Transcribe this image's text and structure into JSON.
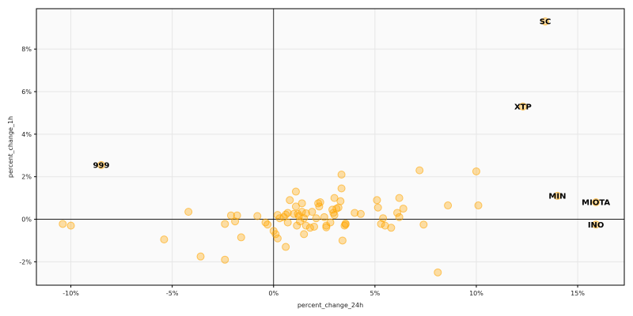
{
  "chart_data": {
    "type": "scatter",
    "xlabel": "percent_change_24h",
    "ylabel": "percent_change_1h",
    "xlim": [
      -11.7,
      17.3
    ],
    "ylim": [
      -3.1,
      9.9
    ],
    "grid": true,
    "colors": {
      "point": "#ffa500",
      "axis": "#000000",
      "grid": "#e6e6e6",
      "plot_bg": "#fafafa"
    },
    "x_ticks": [
      {
        "value": -10,
        "label": "-10%"
      },
      {
        "value": -5,
        "label": "-5%"
      },
      {
        "value": 0,
        "label": "0%"
      },
      {
        "value": 5,
        "label": "5%"
      },
      {
        "value": 10,
        "label": "10%"
      },
      {
        "value": 15,
        "label": "15%"
      }
    ],
    "y_ticks": [
      {
        "value": -2,
        "label": "-2%"
      },
      {
        "value": 0,
        "label": "0%"
      },
      {
        "value": 2,
        "label": "2%"
      },
      {
        "value": 4,
        "label": "4%"
      },
      {
        "value": 6,
        "label": "6%"
      },
      {
        "value": 8,
        "label": "8%"
      }
    ],
    "labeled_points": [
      {
        "label": "SC",
        "x": 13.4,
        "y": 9.3
      },
      {
        "label": "XTP",
        "x": 12.3,
        "y": 5.3
      },
      {
        "label": "999",
        "x": -8.5,
        "y": 2.55
      },
      {
        "label": "MIN",
        "x": 14.0,
        "y": 1.1
      },
      {
        "label": "MIOTA",
        "x": 15.9,
        "y": 0.8
      },
      {
        "label": "INO",
        "x": 15.9,
        "y": -0.25
      }
    ],
    "points": [
      [
        -10.4,
        -0.22
      ],
      [
        -10.0,
        -0.3
      ],
      [
        -5.4,
        -0.95
      ],
      [
        -4.2,
        0.35
      ],
      [
        -3.6,
        -1.75
      ],
      [
        -2.4,
        -1.9
      ],
      [
        -2.4,
        -0.22
      ],
      [
        -2.1,
        0.18
      ],
      [
        -1.9,
        -0.1
      ],
      [
        -1.8,
        0.18
      ],
      [
        -1.6,
        -0.85
      ],
      [
        -0.8,
        0.15
      ],
      [
        -0.4,
        -0.15
      ],
      [
        -0.3,
        -0.25
      ],
      [
        0.0,
        -0.55
      ],
      [
        0.1,
        -0.7
      ],
      [
        0.2,
        -0.9
      ],
      [
        0.2,
        0.2
      ],
      [
        0.3,
        0.05
      ],
      [
        0.5,
        0.1
      ],
      [
        0.6,
        0.22
      ],
      [
        0.6,
        -1.3
      ],
      [
        0.7,
        -0.15
      ],
      [
        0.7,
        0.3
      ],
      [
        0.8,
        0.9
      ],
      [
        1.0,
        0.25
      ],
      [
        1.1,
        1.3
      ],
      [
        1.1,
        0.6
      ],
      [
        1.15,
        -0.3
      ],
      [
        1.2,
        0.25
      ],
      [
        1.25,
        0.15
      ],
      [
        1.3,
        -0.1
      ],
      [
        1.4,
        0.75
      ],
      [
        1.4,
        0.35
      ],
      [
        1.5,
        0.05
      ],
      [
        1.5,
        -0.7
      ],
      [
        1.6,
        0.28
      ],
      [
        1.6,
        -0.3
      ],
      [
        1.8,
        -0.4
      ],
      [
        1.9,
        0.35
      ],
      [
        2.0,
        -0.35
      ],
      [
        2.1,
        0.05
      ],
      [
        2.2,
        0.75
      ],
      [
        2.25,
        0.6
      ],
      [
        2.3,
        0.8
      ],
      [
        2.5,
        0.1
      ],
      [
        2.6,
        -0.3
      ],
      [
        2.6,
        -0.38
      ],
      [
        2.8,
        -0.15
      ],
      [
        2.9,
        0.45
      ],
      [
        2.95,
        0.3
      ],
      [
        3.0,
        0.2
      ],
      [
        3.0,
        1.0
      ],
      [
        3.1,
        0.5
      ],
      [
        3.2,
        0.55
      ],
      [
        3.3,
        0.85
      ],
      [
        3.35,
        1.45
      ],
      [
        3.35,
        2.1
      ],
      [
        3.4,
        -1.0
      ],
      [
        3.5,
        -0.3
      ],
      [
        3.55,
        -0.25
      ],
      [
        3.55,
        -0.2
      ],
      [
        4.0,
        0.3
      ],
      [
        4.3,
        0.25
      ],
      [
        5.1,
        0.9
      ],
      [
        5.15,
        0.55
      ],
      [
        5.3,
        -0.22
      ],
      [
        5.4,
        0.05
      ],
      [
        5.5,
        -0.3
      ],
      [
        5.8,
        -0.4
      ],
      [
        6.1,
        0.3
      ],
      [
        6.2,
        1.0
      ],
      [
        6.2,
        0.1
      ],
      [
        6.4,
        0.5
      ],
      [
        7.2,
        2.3
      ],
      [
        7.4,
        -0.25
      ],
      [
        8.1,
        -2.5
      ],
      [
        8.6,
        0.65
      ],
      [
        10.0,
        2.25
      ],
      [
        10.1,
        0.65
      ]
    ]
  }
}
